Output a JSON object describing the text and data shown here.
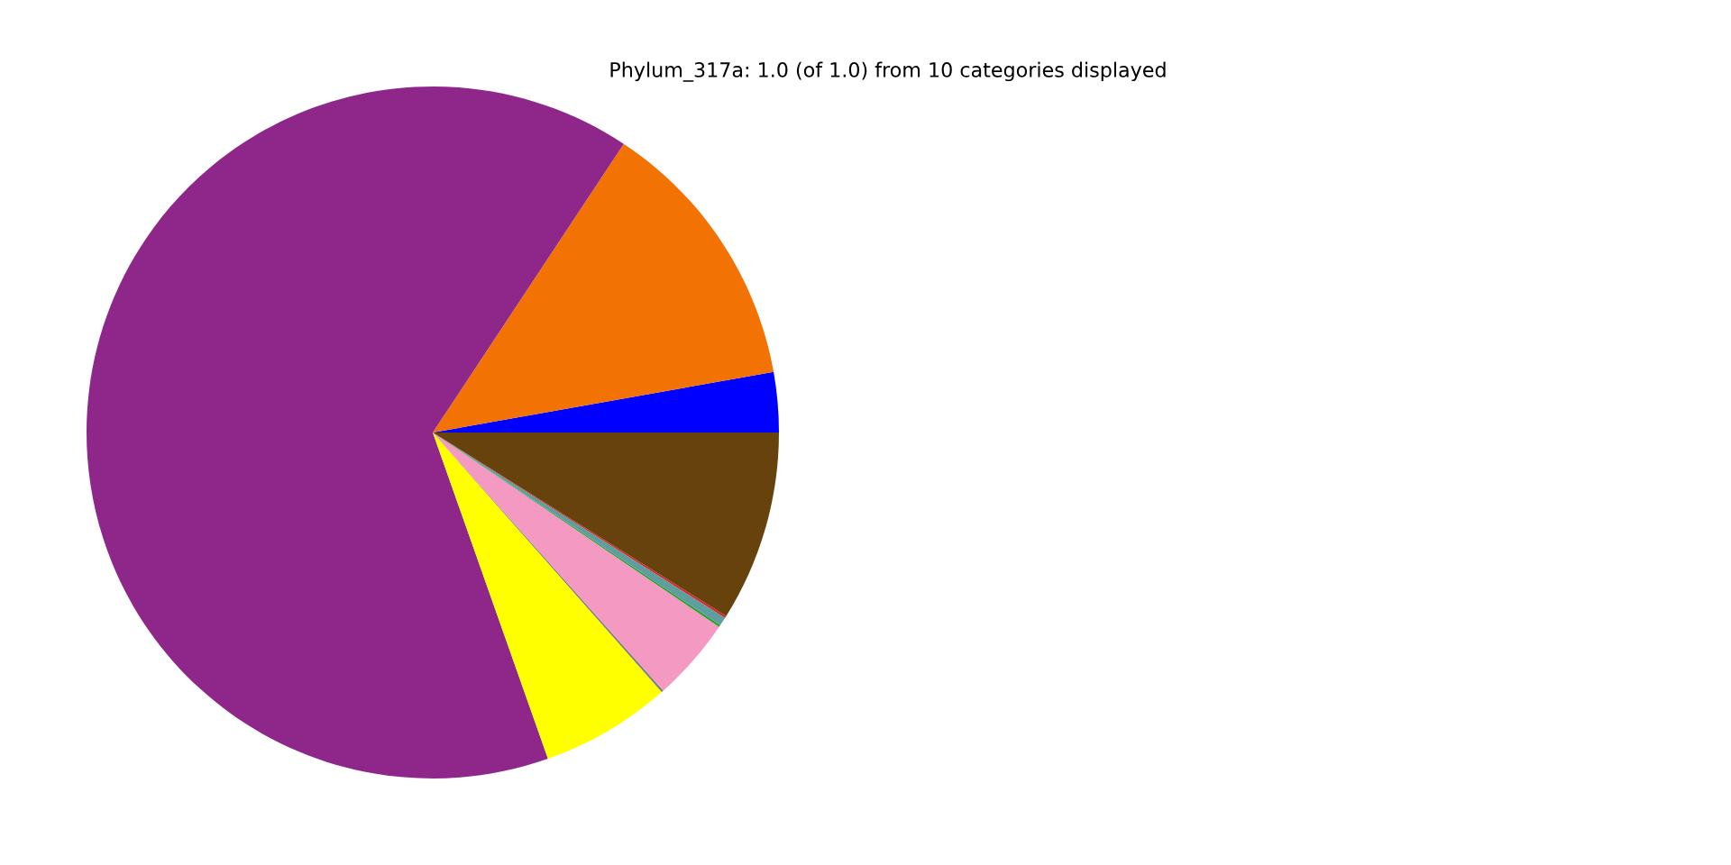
{
  "chart_data": {
    "type": "pie",
    "title": "Phylum_317a: 1.0 (of 1.0) from 10 categories displayed",
    "categories": [
      null,
      null,
      null,
      null,
      null,
      null,
      null,
      null,
      null,
      null
    ],
    "values": [
      2.8,
      12.9,
      64.7,
      6.1,
      0.1,
      3.9,
      0.1,
      0.4,
      0.1,
      8.9
    ],
    "colors": [
      "#0000ff",
      "#f27304",
      "#8f278a",
      "#ffff00",
      "#7f7f7f",
      "#f49ac2",
      "#2ca02c",
      "#5f9ea0",
      "#d62728",
      "#68420c"
    ],
    "legend": false
  }
}
